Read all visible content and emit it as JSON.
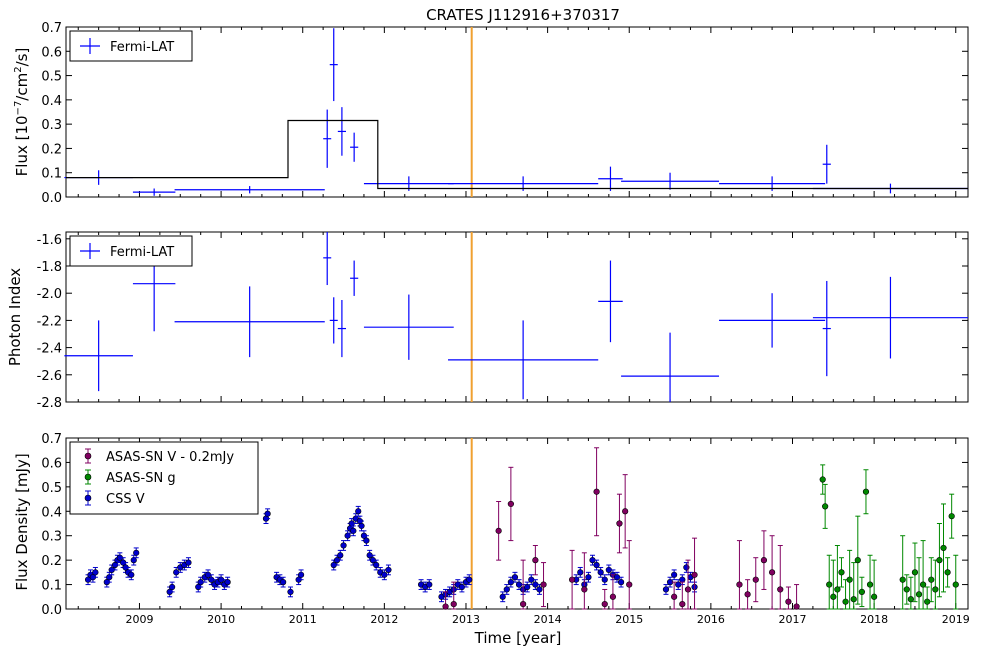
{
  "title": "CRATES J112916+370317",
  "xlabel": "Time [year]",
  "x_ticks": [
    2009,
    2010,
    2011,
    2012,
    2013,
    2014,
    2015,
    2016,
    2017,
    2018,
    2019
  ],
  "xlim": [
    2008.1,
    2019.15
  ],
  "vertical_line": {
    "x": 2013.07,
    "color": "#f0a030"
  },
  "chart_data": [
    {
      "type": "scatter",
      "ylabel": "Flux [10$^{-7}$/cm$^2$/s]",
      "ylabel_display": "Flux [10",
      "ylim": [
        0.0,
        0.7
      ],
      "y_ticks": [
        "0.0",
        "0.1",
        "0.2",
        "0.3",
        "0.4",
        "0.5",
        "0.6",
        "0.7"
      ],
      "y_tick_values": [
        0.0,
        0.1,
        0.2,
        0.3,
        0.4,
        0.5,
        0.6,
        0.7
      ],
      "legend": [
        "Fermi-LAT"
      ],
      "legend_position": "top-left",
      "series": [
        {
          "name": "Fermi-LAT",
          "color": "#0000ff",
          "points": [
            {
              "x": 2008.5,
              "xerr": 0.42,
              "y": 0.08,
              "yerr": 0.03
            },
            {
              "x": 2009.18,
              "xerr": 0.26,
              "y": 0.02,
              "yerr": 0.015
            },
            {
              "x": 2010.35,
              "xerr": 0.92,
              "y": 0.03,
              "yerr": 0.015
            },
            {
              "x": 2011.3,
              "xerr": 0.0,
              "y": 0.24,
              "yerr": 0.12
            },
            {
              "x": 2011.38,
              "xerr": 0.0,
              "y": 0.545,
              "yerr": 0.15
            },
            {
              "x": 2011.48,
              "xerr": 0.05,
              "y": 0.27,
              "yerr": 0.1
            },
            {
              "x": 2011.63,
              "xerr": 0.05,
              "y": 0.205,
              "yerr": 0.06
            },
            {
              "x": 2012.3,
              "xerr": 0.55,
              "y": 0.055,
              "yerr": 0.03
            },
            {
              "x": 2013.7,
              "xerr": 0.92,
              "y": 0.055,
              "yerr": 0.03
            },
            {
              "x": 2014.77,
              "xerr": 0.15,
              "y": 0.075,
              "yerr": 0.05
            },
            {
              "x": 2015.5,
              "xerr": 0.6,
              "y": 0.065,
              "yerr": 0.035
            },
            {
              "x": 2016.75,
              "xerr": 0.65,
              "y": 0.055,
              "yerr": 0.03
            },
            {
              "x": 2017.42,
              "xerr": 0.05,
              "y": 0.135,
              "yerr": 0.08
            },
            {
              "x": 2018.2,
              "xerr": 0.95,
              "y": 0.035,
              "yerr": 0.02
            }
          ]
        },
        {
          "name": "",
          "type": "step",
          "color": "#000000",
          "steps": [
            [
              2008.1,
              0.08
            ],
            [
              2010.82,
              0.08
            ],
            [
              2010.82,
              0.315
            ],
            [
              2011.92,
              0.315
            ],
            [
              2011.92,
              0.035
            ],
            [
              2019.15,
              0.035
            ]
          ]
        }
      ]
    },
    {
      "type": "scatter",
      "ylabel": "Photon Index",
      "ylim": [
        -2.8,
        -1.55
      ],
      "y_ticks": [
        "-2.8",
        "-2.6",
        "-2.4",
        "-2.2",
        "-2.0",
        "-1.8",
        "-1.6"
      ],
      "y_tick_values": [
        -2.8,
        -2.6,
        -2.4,
        -2.2,
        -2.0,
        -1.8,
        -1.6
      ],
      "legend": [
        "Fermi-LAT"
      ],
      "legend_position": "top-left",
      "series": [
        {
          "name": "Fermi-LAT",
          "color": "#0000ff",
          "points": [
            {
              "x": 2008.5,
              "xerr": 0.42,
              "y": -2.46,
              "yerr": 0.26
            },
            {
              "x": 2009.18,
              "xerr": 0.26,
              "y": -1.93,
              "yerr": 0.35
            },
            {
              "x": 2010.35,
              "xerr": 0.92,
              "y": -2.21,
              "yerr": 0.26
            },
            {
              "x": 2011.3,
              "xerr": 0.0,
              "y": -1.74,
              "yerr": 0.2
            },
            {
              "x": 2011.38,
              "xerr": 0.0,
              "y": -2.2,
              "yerr": 0.17
            },
            {
              "x": 2011.48,
              "xerr": 0.05,
              "y": -2.26,
              "yerr": 0.21
            },
            {
              "x": 2011.63,
              "xerr": 0.05,
              "y": -1.89,
              "yerr": 0.13
            },
            {
              "x": 2012.3,
              "xerr": 0.55,
              "y": -2.25,
              "yerr": 0.24
            },
            {
              "x": 2013.7,
              "xerr": 0.92,
              "y": -2.49,
              "yerr": 0.29
            },
            {
              "x": 2014.77,
              "xerr": 0.15,
              "y": -2.06,
              "yerr": 0.3
            },
            {
              "x": 2015.5,
              "xerr": 0.6,
              "y": -2.61,
              "yerr": 0.32
            },
            {
              "x": 2016.75,
              "xerr": 0.65,
              "y": -2.2,
              "yerr": 0.2
            },
            {
              "x": 2017.42,
              "xerr": 0.05,
              "y": -2.26,
              "yerr": 0.35
            },
            {
              "x": 2018.2,
              "xerr": 0.95,
              "y": -2.18,
              "yerr": 0.3
            }
          ]
        }
      ]
    },
    {
      "type": "scatter",
      "ylabel": "Flux Density [mJy]",
      "ylim": [
        0.0,
        0.7
      ],
      "y_ticks": [
        "0.0",
        "0.1",
        "0.2",
        "0.3",
        "0.4",
        "0.5",
        "0.6",
        "0.7"
      ],
      "y_tick_values": [
        0.0,
        0.1,
        0.2,
        0.3,
        0.4,
        0.5,
        0.6,
        0.7
      ],
      "legend": [
        "ASAS-SN V - 0.2mJy",
        "ASAS-SN g",
        "CSS V"
      ],
      "legend_position": "top-left",
      "series": [
        {
          "name": "CSS V",
          "color": "#0000cc",
          "points": [
            [
              2008.37,
              0.12
            ],
            [
              2008.4,
              0.14
            ],
            [
              2008.43,
              0.13
            ],
            [
              2008.46,
              0.15
            ],
            [
              2008.6,
              0.11
            ],
            [
              2008.63,
              0.13
            ],
            [
              2008.66,
              0.16
            ],
            [
              2008.7,
              0.18
            ],
            [
              2008.73,
              0.2
            ],
            [
              2008.76,
              0.21
            ],
            [
              2008.8,
              0.19
            ],
            [
              2008.83,
              0.17
            ],
            [
              2008.86,
              0.15
            ],
            [
              2008.9,
              0.14
            ],
            [
              2008.93,
              0.2
            ],
            [
              2008.96,
              0.23
            ],
            [
              2009.37,
              0.07
            ],
            [
              2009.4,
              0.09
            ],
            [
              2009.45,
              0.15
            ],
            [
              2009.5,
              0.17
            ],
            [
              2009.55,
              0.18
            ],
            [
              2009.6,
              0.19
            ],
            [
              2009.72,
              0.09
            ],
            [
              2009.75,
              0.11
            ],
            [
              2009.8,
              0.13
            ],
            [
              2009.84,
              0.14
            ],
            [
              2009.88,
              0.12
            ],
            [
              2009.92,
              0.1
            ],
            [
              2009.96,
              0.11
            ],
            [
              2010.0,
              0.12
            ],
            [
              2010.04,
              0.1
            ],
            [
              2010.08,
              0.11
            ],
            [
              2010.55,
              0.37
            ],
            [
              2010.57,
              0.39
            ],
            [
              2010.68,
              0.13
            ],
            [
              2010.72,
              0.12
            ],
            [
              2010.76,
              0.11
            ],
            [
              2010.85,
              0.07
            ],
            [
              2010.95,
              0.12
            ],
            [
              2010.98,
              0.14
            ],
            [
              2011.38,
              0.18
            ],
            [
              2011.42,
              0.2
            ],
            [
              2011.46,
              0.22
            ],
            [
              2011.5,
              0.26
            ],
            [
              2011.55,
              0.3
            ],
            [
              2011.58,
              0.33
            ],
            [
              2011.6,
              0.35
            ],
            [
              2011.62,
              0.32
            ],
            [
              2011.65,
              0.37
            ],
            [
              2011.68,
              0.4
            ],
            [
              2011.7,
              0.36
            ],
            [
              2011.72,
              0.34
            ],
            [
              2011.75,
              0.3
            ],
            [
              2011.78,
              0.28
            ],
            [
              2011.82,
              0.22
            ],
            [
              2011.86,
              0.2
            ],
            [
              2011.9,
              0.18
            ],
            [
              2011.95,
              0.15
            ],
            [
              2012.0,
              0.14
            ],
            [
              2012.05,
              0.16
            ],
            [
              2012.45,
              0.1
            ],
            [
              2012.5,
              0.09
            ],
            [
              2012.55,
              0.1
            ],
            [
              2012.7,
              0.05
            ],
            [
              2012.75,
              0.06
            ],
            [
              2012.8,
              0.07
            ],
            [
              2012.85,
              0.08
            ],
            [
              2012.9,
              0.1
            ],
            [
              2012.95,
              0.09
            ],
            [
              2013.0,
              0.11
            ],
            [
              2013.04,
              0.12
            ],
            [
              2013.45,
              0.05
            ],
            [
              2013.5,
              0.08
            ],
            [
              2013.55,
              0.11
            ],
            [
              2013.6,
              0.13
            ],
            [
              2013.65,
              0.1
            ],
            [
              2013.7,
              0.08
            ],
            [
              2013.75,
              0.09
            ],
            [
              2013.8,
              0.12
            ],
            [
              2013.85,
              0.1
            ],
            [
              2013.9,
              0.08
            ],
            [
              2014.35,
              0.12
            ],
            [
              2014.4,
              0.15
            ],
            [
              2014.45,
              0.1
            ],
            [
              2014.5,
              0.13
            ],
            [
              2014.55,
              0.2
            ],
            [
              2014.6,
              0.18
            ],
            [
              2014.65,
              0.15
            ],
            [
              2014.7,
              0.12
            ],
            [
              2014.75,
              0.16
            ],
            [
              2014.8,
              0.14
            ],
            [
              2014.85,
              0.13
            ],
            [
              2014.9,
              0.11
            ],
            [
              2015.45,
              0.08
            ],
            [
              2015.5,
              0.11
            ],
            [
              2015.55,
              0.14
            ],
            [
              2015.6,
              0.1
            ],
            [
              2015.65,
              0.12
            ],
            [
              2015.7,
              0.17
            ],
            [
              2015.75,
              0.13
            ],
            [
              2015.8,
              0.09
            ]
          ]
        },
        {
          "name": "ASAS-SN V - 0.2mJy",
          "color": "#800060",
          "points": [
            [
              2012.75,
              0.01
            ],
            [
              2012.85,
              0.02
            ],
            [
              2013.4,
              0.32
            ],
            [
              2013.55,
              0.43
            ],
            [
              2013.7,
              0.02
            ],
            [
              2013.85,
              0.2
            ],
            [
              2013.95,
              0.1
            ],
            [
              2014.3,
              0.12
            ],
            [
              2014.45,
              0.08
            ],
            [
              2014.6,
              0.48
            ],
            [
              2014.7,
              0.02
            ],
            [
              2014.8,
              0.05
            ],
            [
              2014.88,
              0.35
            ],
            [
              2014.95,
              0.4
            ],
            [
              2015.0,
              0.1
            ],
            [
              2015.55,
              0.05
            ],
            [
              2015.65,
              0.02
            ],
            [
              2015.72,
              0.08
            ],
            [
              2015.8,
              0.14
            ],
            [
              2016.35,
              0.1
            ],
            [
              2016.45,
              0.06
            ],
            [
              2016.55,
              0.12
            ],
            [
              2016.65,
              0.2
            ],
            [
              2016.75,
              0.15
            ],
            [
              2016.85,
              0.08
            ],
            [
              2016.95,
              0.03
            ],
            [
              2017.05,
              0.01
            ]
          ]
        },
        {
          "name": "ASAS-SN g",
          "color": "#008800",
          "points": [
            [
              2017.37,
              0.53
            ],
            [
              2017.4,
              0.42
            ],
            [
              2017.45,
              0.1
            ],
            [
              2017.5,
              0.05
            ],
            [
              2017.55,
              0.08
            ],
            [
              2017.6,
              0.15
            ],
            [
              2017.65,
              0.03
            ],
            [
              2017.7,
              0.12
            ],
            [
              2017.75,
              0.04
            ],
            [
              2017.8,
              0.2
            ],
            [
              2017.85,
              0.07
            ],
            [
              2017.9,
              0.48
            ],
            [
              2017.95,
              0.1
            ],
            [
              2018.0,
              0.05
            ],
            [
              2018.35,
              0.12
            ],
            [
              2018.4,
              0.08
            ],
            [
              2018.45,
              0.04
            ],
            [
              2018.5,
              0.15
            ],
            [
              2018.55,
              0.06
            ],
            [
              2018.6,
              0.1
            ],
            [
              2018.65,
              0.03
            ],
            [
              2018.7,
              0.12
            ],
            [
              2018.75,
              0.08
            ],
            [
              2018.8,
              0.2
            ],
            [
              2018.85,
              0.25
            ],
            [
              2018.9,
              0.15
            ],
            [
              2018.95,
              0.38
            ],
            [
              2019.0,
              0.1
            ]
          ]
        }
      ]
    }
  ]
}
